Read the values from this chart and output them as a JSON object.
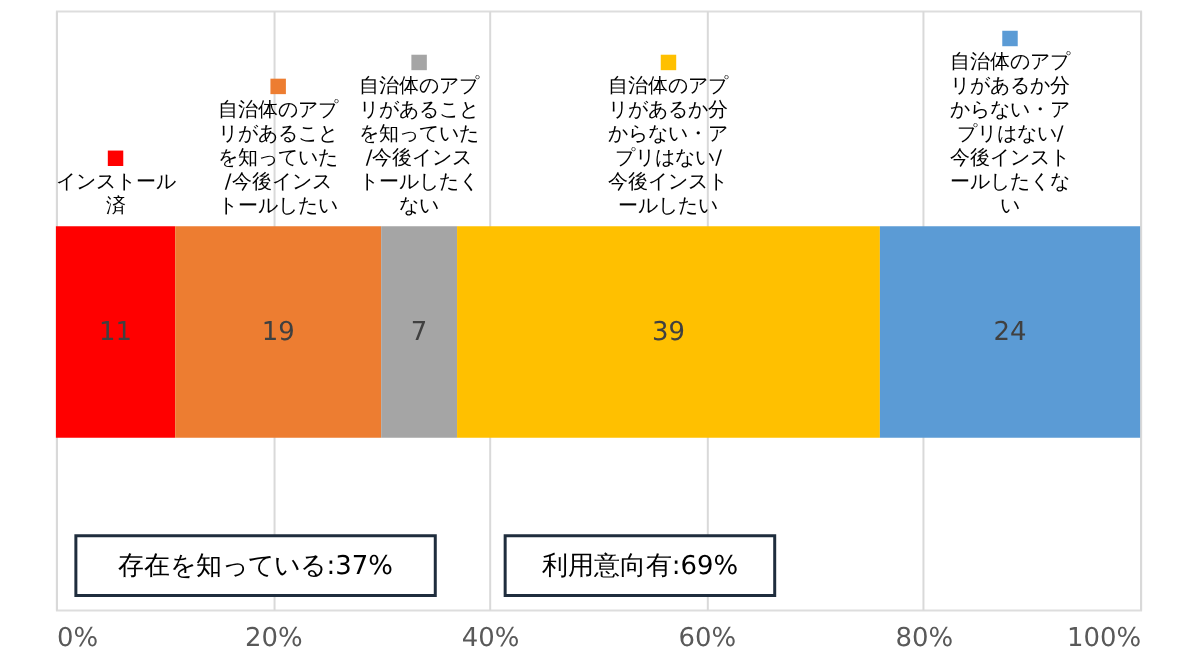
{
  "chart_data": {
    "type": "bar",
    "orientation": "horizontal",
    "stacked": true,
    "categories": [
      null
    ],
    "series": [
      {
        "name": "インストール済",
        "color": "#ff0000",
        "values": [
          11
        ]
      },
      {
        "name": "自治体のアプリがあることを知っていた/今後インストールしたい",
        "color": "#ed7d31",
        "values": [
          19
        ]
      },
      {
        "name": "自治体のアプリがあることを知っていた/今後インストールしたくない",
        "color": "#a5a5a5",
        "values": [
          7
        ]
      },
      {
        "name": "自治体のアプリがあるか分からない・アプリはない/今後インストールしたい",
        "color": "#ffc000",
        "values": [
          39
        ]
      },
      {
        "name": "自治体のアプリがあるか分からない・アプリはない/今後インストールしたくない",
        "color": "#5b9bd5",
        "values": [
          24
        ]
      }
    ],
    "data_labels": true,
    "legend": "top",
    "grid": "x",
    "xlim": [
      0,
      100
    ],
    "xticks": [
      {
        "value": 0,
        "label": "0%"
      },
      {
        "value": 20,
        "label": "20%"
      },
      {
        "value": 40,
        "label": "40%"
      },
      {
        "value": 60,
        "label": "60%"
      },
      {
        "value": 80,
        "label": "80%"
      },
      {
        "value": 100,
        "label": "100%"
      }
    ],
    "annotations": [
      "存在を知っている:37%",
      "利用意向有:69%"
    ]
  }
}
